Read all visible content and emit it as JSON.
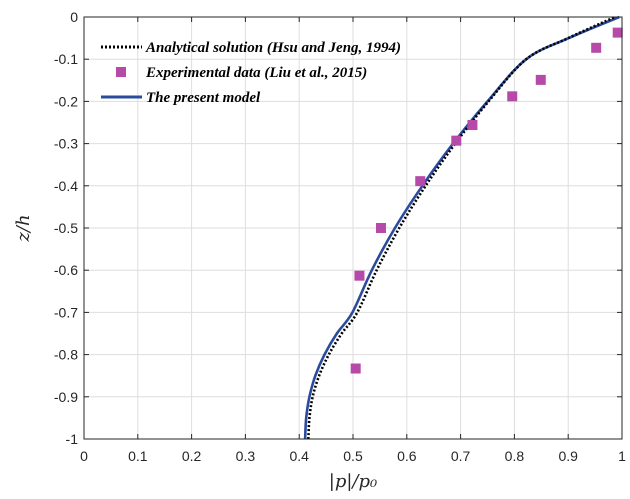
{
  "chart_data": {
    "type": "line",
    "xlabel": "|p|/p₀",
    "ylabel": "z/h",
    "xlim": [
      0,
      1
    ],
    "ylim": [
      -1,
      0
    ],
    "xticks": [
      "0",
      "0.1",
      "0.2",
      "0.3",
      "0.4",
      "0.5",
      "0.6",
      "0.7",
      "0.8",
      "0.9",
      "1"
    ],
    "yticks": [
      "0",
      "-0.1",
      "-0.2",
      "-0.3",
      "-0.4",
      "-0.5",
      "-0.6",
      "-0.7",
      "-0.8",
      "-0.9",
      "-1"
    ],
    "grid": true,
    "legend_position": "top-left",
    "series": [
      {
        "name": "Analytical solution (Hsu and Jeng, 1994)",
        "style": "dotted",
        "color": "#000000",
        "x": [
          0.417,
          0.419,
          0.425,
          0.437,
          0.455,
          0.479,
          0.508,
          0.544,
          0.586,
          0.635,
          0.69,
          0.752,
          0.822,
          0.9,
          0.987
        ],
        "y": [
          -1.0,
          -0.95,
          -0.9,
          -0.85,
          -0.8,
          -0.75,
          -0.7,
          -0.6,
          -0.5,
          -0.4,
          -0.3,
          -0.2,
          -0.1,
          -0.05,
          0.0
        ]
      },
      {
        "name": "Experimental data (Liu et al., 2015)",
        "style": "markers",
        "color": "#b54aa8",
        "x": [
          0.505,
          0.512,
          0.552,
          0.625,
          0.692,
          0.722,
          0.796,
          0.849,
          0.952,
          0.992
        ],
        "y": [
          -0.833,
          -0.613,
          -0.5,
          -0.389,
          -0.293,
          -0.256,
          -0.188,
          -0.149,
          -0.073,
          -0.037
        ]
      },
      {
        "name": "The present model",
        "style": "solid",
        "color": "#2b4b9c",
        "x": [
          0.411,
          0.413,
          0.419,
          0.43,
          0.447,
          0.47,
          0.499,
          0.535,
          0.578,
          0.629,
          0.686,
          0.75,
          0.822,
          0.901,
          0.995
        ],
        "y": [
          -1.0,
          -0.95,
          -0.9,
          -0.85,
          -0.8,
          -0.75,
          -0.7,
          -0.6,
          -0.5,
          -0.4,
          -0.3,
          -0.2,
          -0.1,
          -0.05,
          0.0
        ]
      }
    ]
  }
}
